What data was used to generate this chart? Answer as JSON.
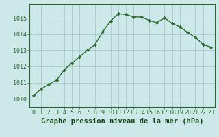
{
  "x": [
    0,
    1,
    2,
    3,
    4,
    5,
    6,
    7,
    8,
    9,
    10,
    11,
    12,
    13,
    14,
    15,
    16,
    17,
    18,
    19,
    20,
    21,
    22,
    23
  ],
  "y": [
    1010.2,
    1010.6,
    1010.9,
    1011.15,
    1011.8,
    1012.2,
    1012.6,
    1013.0,
    1013.35,
    1014.15,
    1014.8,
    1015.25,
    1015.2,
    1015.05,
    1015.05,
    1014.85,
    1014.7,
    1015.0,
    1014.65,
    1014.45,
    1014.1,
    1013.8,
    1013.35,
    1013.2
  ],
  "line_color": "#2d6a2d",
  "marker": "D",
  "marker_size": 2.2,
  "line_width": 1.0,
  "bg_color": "#cce8e8",
  "grid_color": "#b0d0d0",
  "xlabel": "Graphe pression niveau de la mer (hPa)",
  "xlabel_fontsize": 7.5,
  "xlabel_color": "#1a4a1a",
  "xlabel_fontweight": "bold",
  "ylim": [
    1009.5,
    1015.85
  ],
  "xlim": [
    -0.5,
    23.5
  ],
  "yticks": [
    1010,
    1011,
    1012,
    1013,
    1014,
    1015
  ],
  "tick_fontsize": 6.0,
  "tick_color": "#2d6a2d",
  "fig_width": 3.2,
  "fig_height": 2.0,
  "fig_dpi": 100
}
